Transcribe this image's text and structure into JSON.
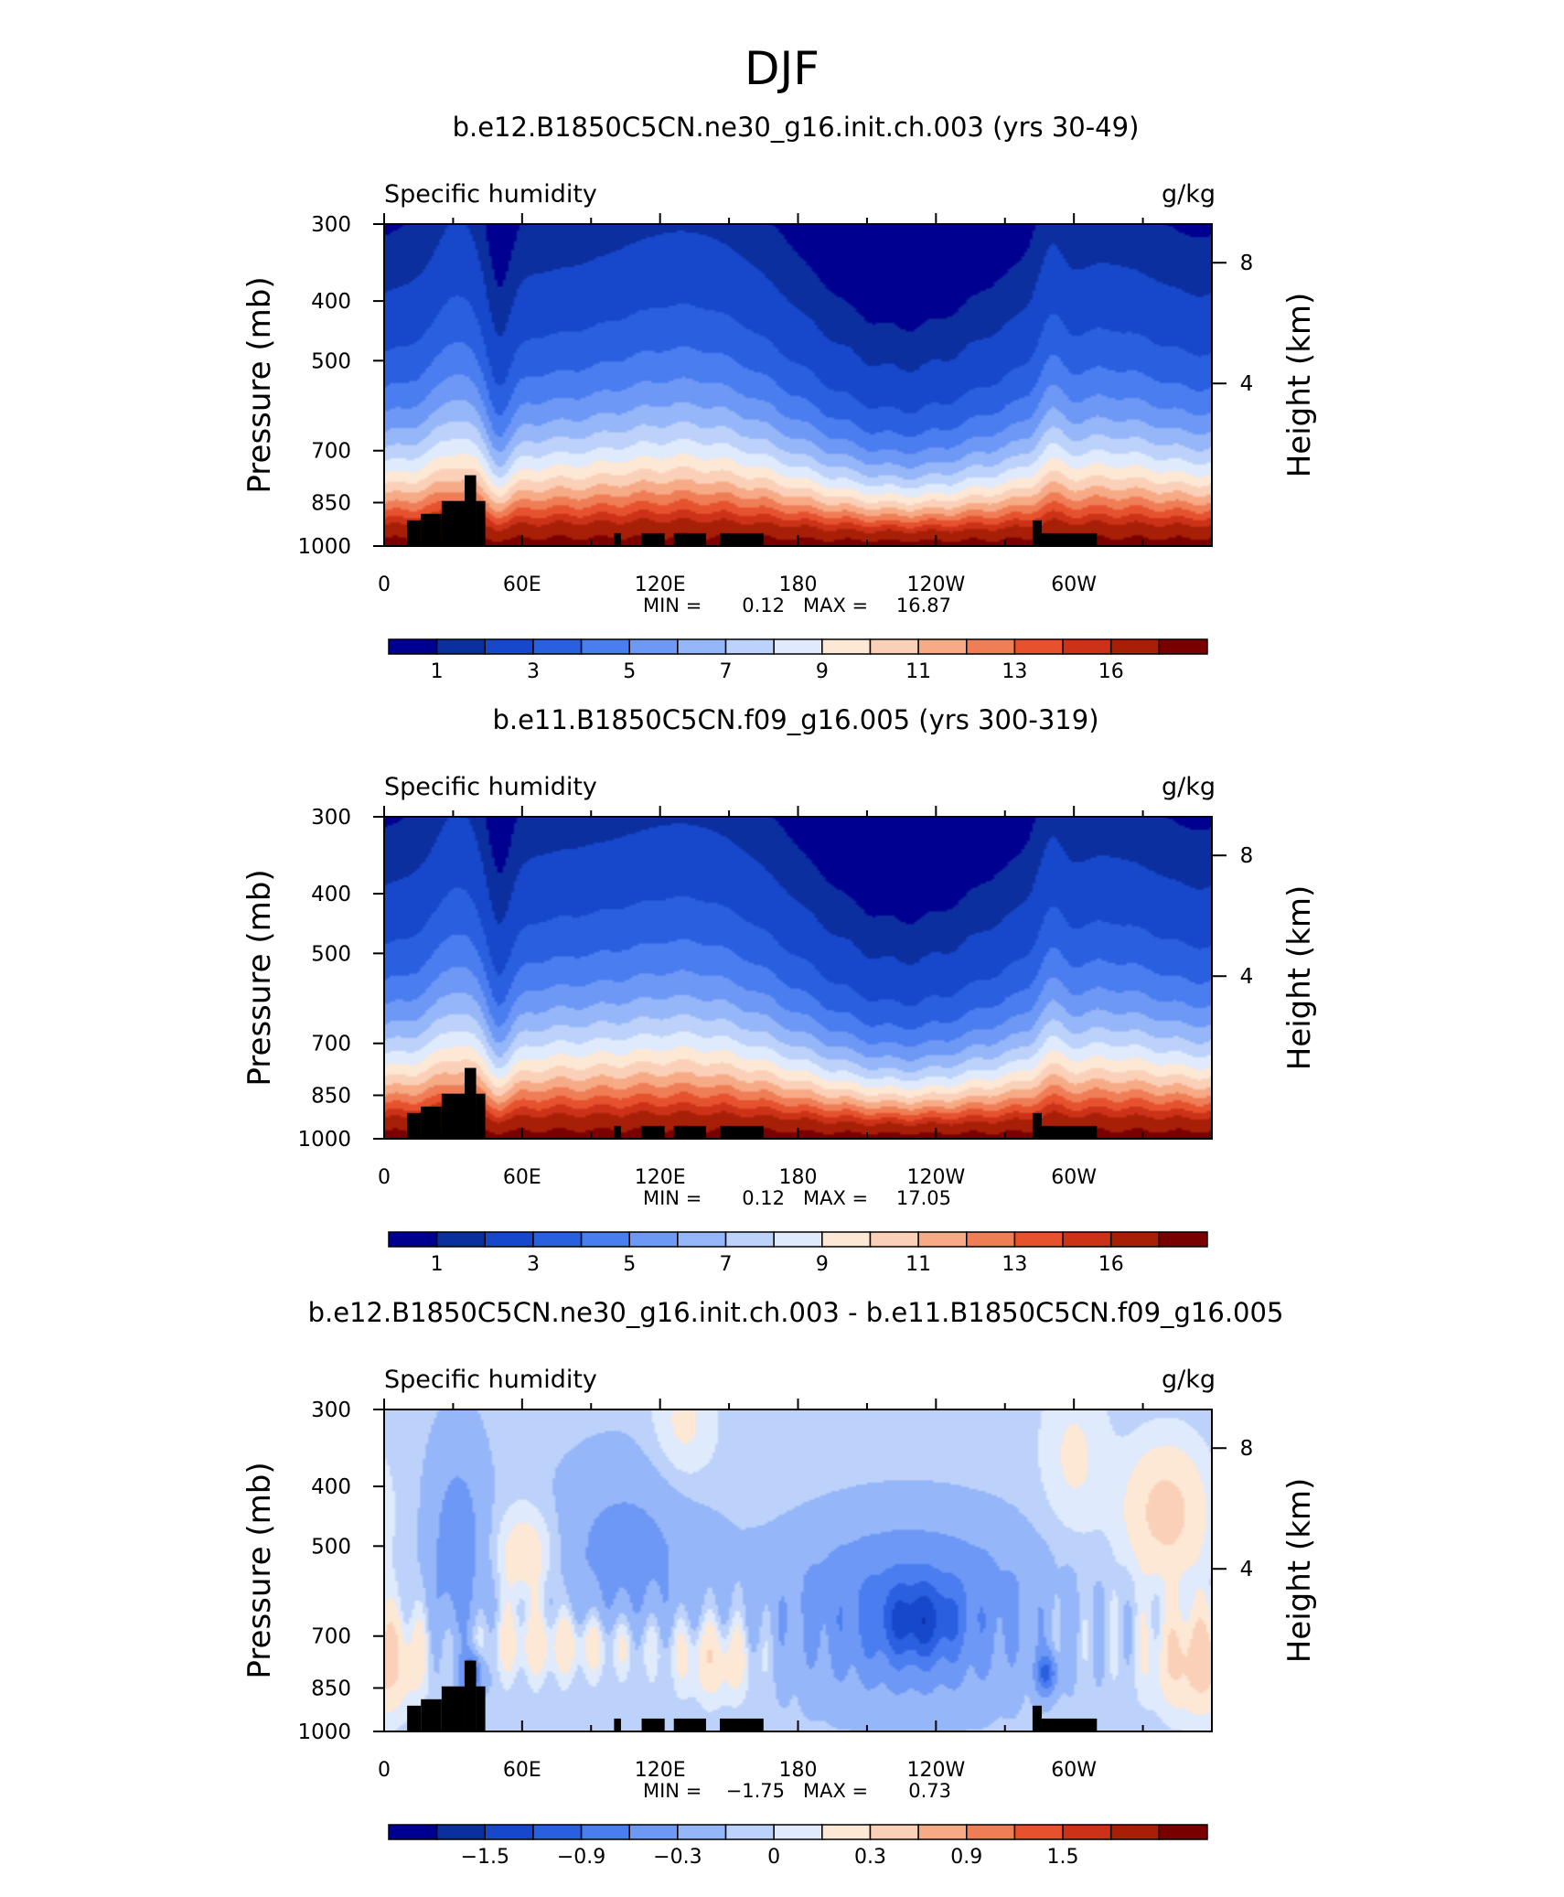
{
  "figure": {
    "title": "DJF"
  },
  "chart_data": [
    {
      "type": "heatmap",
      "title": "b.e12.B1850C5CN.ne30_g16.init.ch.003 (yrs 30-49)",
      "left_label": "Specific humidity",
      "right_label": "g/kg",
      "ylabel": "Pressure (mb)",
      "y2label": "Height (km)",
      "x_ticks": [
        "0",
        "60E",
        "120E",
        "180",
        "120W",
        "60W"
      ],
      "y_ticks": [
        "300",
        "400",
        "500",
        "700",
        "850",
        "1000"
      ],
      "y2_ticks": [
        "8",
        "4"
      ],
      "stats": {
        "min_label": "MIN =",
        "min": "0.12",
        "max_label": "MAX =",
        "max": "16.87"
      },
      "colorbar_labels": [
        "1",
        "3",
        "5",
        "7",
        "9",
        "11",
        "13",
        "16"
      ],
      "colors": [
        "#000090",
        "#0c2fa0",
        "#1748cc",
        "#2a5fe0",
        "#4a7df0",
        "#6d98f5",
        "#95b6f8",
        "#bcd2fa",
        "#dfeafd",
        "#fde8d6",
        "#fbd0b8",
        "#f6aa85",
        "#ef7d56",
        "#e6512e",
        "#cc3217",
        "#a81f08",
        "#7a0000"
      ],
      "x_range": [
        0,
        360
      ],
      "y_range": [
        300,
        1000
      ],
      "y_scale": "log",
      "topography": "black"
    },
    {
      "type": "heatmap",
      "title": "b.e11.B1850C5CN.f09_g16.005 (yrs 300-319)",
      "left_label": "Specific humidity",
      "right_label": "g/kg",
      "ylabel": "Pressure (mb)",
      "y2label": "Height (km)",
      "x_ticks": [
        "0",
        "60E",
        "120E",
        "180",
        "120W",
        "60W"
      ],
      "y_ticks": [
        "300",
        "400",
        "500",
        "700",
        "850",
        "1000"
      ],
      "y2_ticks": [
        "8",
        "4"
      ],
      "stats": {
        "min_label": "MIN =",
        "min": "0.12",
        "max_label": "MAX =",
        "max": "17.05"
      },
      "colorbar_labels": [
        "1",
        "3",
        "5",
        "7",
        "9",
        "11",
        "13",
        "16"
      ],
      "colors": [
        "#000090",
        "#0c2fa0",
        "#1748cc",
        "#2a5fe0",
        "#4a7df0",
        "#6d98f5",
        "#95b6f8",
        "#bcd2fa",
        "#dfeafd",
        "#fde8d6",
        "#fbd0b8",
        "#f6aa85",
        "#ef7d56",
        "#e6512e",
        "#cc3217",
        "#a81f08",
        "#7a0000"
      ],
      "x_range": [
        0,
        360
      ],
      "y_range": [
        300,
        1000
      ],
      "y_scale": "log",
      "topography": "black"
    },
    {
      "type": "heatmap",
      "title": "b.e12.B1850C5CN.ne30_g16.init.ch.003 - b.e11.B1850C5CN.f09_g16.005",
      "left_label": "Specific humidity",
      "right_label": "g/kg",
      "ylabel": "Pressure (mb)",
      "y2label": "Height (km)",
      "x_ticks": [
        "0",
        "60E",
        "120E",
        "180",
        "120W",
        "60W"
      ],
      "y_ticks": [
        "300",
        "400",
        "500",
        "700",
        "850",
        "1000"
      ],
      "y2_ticks": [
        "8",
        "4"
      ],
      "stats": {
        "min_label": "MIN =",
        "min": "−1.75",
        "max_label": "MAX =",
        "max": "0.73"
      },
      "colorbar_labels": [
        "−1.5",
        "−0.9",
        "−0.3",
        "0",
        "0.3",
        "0.9",
        "1.5"
      ],
      "colors": [
        "#000090",
        "#0c2fa0",
        "#1748cc",
        "#2a5fe0",
        "#4a7df0",
        "#6d98f5",
        "#95b6f8",
        "#bcd2fa",
        "#dfeafd",
        "#fde8d6",
        "#fbd0b8",
        "#f6aa85",
        "#ef7d56",
        "#e6512e",
        "#cc3217",
        "#a81f08",
        "#7a0000"
      ],
      "x_range": [
        0,
        360
      ],
      "y_range": [
        300,
        1000
      ],
      "y_scale": "log",
      "topography": "black"
    }
  ]
}
